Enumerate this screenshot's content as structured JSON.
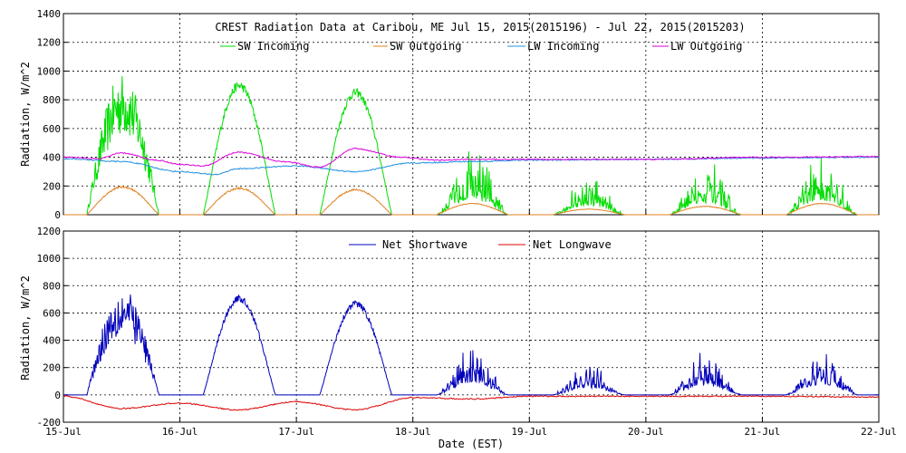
{
  "chart_data": [
    {
      "type": "line",
      "title": "CREST Radiation Data at Caribou, ME   Jul 15, 2015(2015196) - Jul 22, 2015(2015203)",
      "xlabel": "",
      "ylabel": "Radiation, W/m^2",
      "ylim": [
        0,
        1400
      ],
      "yticks": [
        "0",
        "200",
        "400",
        "600",
        "800",
        "1000",
        "1200",
        "1400"
      ],
      "xlim": [
        0,
        7
      ],
      "legend_position": "top",
      "grid": true,
      "series": [
        {
          "name": "SW Incoming",
          "color": "#00dd00",
          "peaks": [
            990,
            930,
            880,
            430,
            250,
            330,
            380
          ],
          "style": [
            "spiky",
            "smooth",
            "smooth",
            "cloudy",
            "cloudy",
            "cloudy",
            "cloudy"
          ]
        },
        {
          "name": "SW Outgoing",
          "color": "#e08020",
          "peaks": [
            200,
            190,
            180,
            80,
            40,
            60,
            80
          ]
        },
        {
          "name": "LW Incoming",
          "color": "#2090e0",
          "x": [
            0,
            0.5,
            1,
            1.3,
            1.5,
            2,
            2.5,
            3,
            3.5,
            4,
            5,
            6,
            7
          ],
          "values": [
            390,
            370,
            300,
            280,
            320,
            340,
            300,
            360,
            370,
            380,
            385,
            395,
            400
          ]
        },
        {
          "name": "LW Outgoing",
          "color": "#dd00dd",
          "x": [
            0,
            0.3,
            0.5,
            0.8,
            1,
            1.2,
            1.5,
            1.9,
            2.2,
            2.5,
            2.9,
            3.2,
            3.5,
            4,
            5,
            6,
            7
          ],
          "values": [
            400,
            390,
            430,
            380,
            350,
            340,
            435,
            370,
            330,
            460,
            400,
            380,
            385,
            385,
            385,
            400,
            405
          ]
        }
      ]
    },
    {
      "type": "line",
      "title": "",
      "xlabel": "Date (EST)",
      "ylabel": "Radiation, W/m^2",
      "ylim": [
        -200,
        1200
      ],
      "yticks": [
        "-200",
        "0",
        "200",
        "400",
        "600",
        "800",
        "1000",
        "1200"
      ],
      "xlim": [
        0,
        7
      ],
      "legend_position": "top",
      "grid": true,
      "series": [
        {
          "name": "Net Shortwave",
          "color": "#0000bb",
          "peaks": [
            780,
            730,
            690,
            340,
            200,
            270,
            300
          ],
          "style": [
            "spiky",
            "smooth",
            "smooth",
            "cloudy",
            "cloudy",
            "cloudy",
            "cloudy"
          ]
        },
        {
          "name": "Net Longwave",
          "color": "#dd0000",
          "x": [
            0,
            0.5,
            1,
            1.5,
            2,
            2.5,
            3,
            3.5,
            4,
            5,
            6,
            7
          ],
          "values": [
            -10,
            -100,
            -60,
            -110,
            -50,
            -110,
            -20,
            -30,
            -10,
            -10,
            -10,
            -15
          ]
        }
      ]
    }
  ],
  "x_tick_labels": [
    "15-Jul",
    "16-Jul",
    "17-Jul",
    "18-Jul",
    "19-Jul",
    "20-Jul",
    "21-Jul",
    "22-Jul"
  ]
}
